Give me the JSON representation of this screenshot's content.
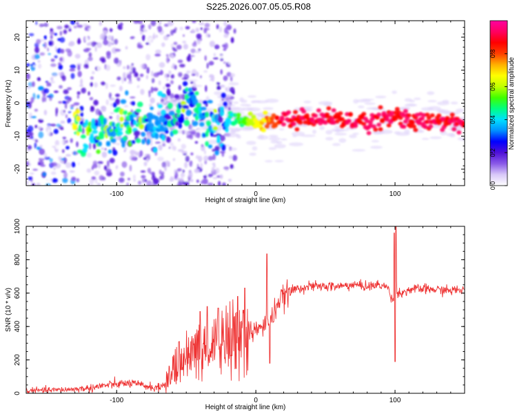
{
  "title": "S225.2026.007.05.05.R08",
  "chart_data": [
    {
      "type": "heatmap",
      "name": "spectrogram",
      "xlabel": "Height of straight line (km)",
      "ylabel": "Frequency (Hz)",
      "xlim": [
        -165,
        150
      ],
      "ylim": [
        -25,
        25
      ],
      "x_ticks": [
        -100,
        0,
        100
      ],
      "y_ticks": [
        20,
        10,
        0,
        -10,
        -20
      ],
      "colorbar": {
        "label": "Normalized spectral amplitude",
        "range": [
          0.0,
          1.0
        ],
        "ticks": [
          0.0,
          0.2,
          0.4,
          0.6,
          0.8
        ],
        "colors": [
          "#ffffff",
          "#d8c8f8",
          "#8a5ae8",
          "#5010d8",
          "#0000ff",
          "#0090ff",
          "#00e0ff",
          "#00ff80",
          "#40ff00",
          "#c0ff00",
          "#ffff00",
          "#ffb000",
          "#ff4000",
          "#ff0000",
          "#ff0060",
          "#ff00a0"
        ]
      },
      "ridge": {
        "description_points_x_km": [
          -125,
          -110,
          -95,
          -80,
          -70,
          -55,
          -45,
          -35,
          -25,
          -15,
          -5,
          5,
          15,
          30,
          50,
          70,
          85,
          95,
          100,
          110,
          130,
          150
        ],
        "frequency_hz": [
          -11,
          -8,
          -7,
          -5.5,
          -7,
          -3,
          0,
          -6,
          -5,
          -5,
          -5,
          -6,
          -5,
          -5,
          -5,
          -5.5,
          -6,
          -5,
          -4,
          -5,
          -5.5,
          -5.5
        ]
      }
    },
    {
      "type": "line",
      "name": "snr",
      "xlabel": "Height of straight line (km)",
      "ylabel": "SNR (10 * v/v)",
      "xlim": [
        -165,
        150
      ],
      "ylim": [
        0,
        1000
      ],
      "x_ticks": [
        -100,
        0,
        100
      ],
      "y_ticks": [
        0,
        200,
        400,
        600,
        800,
        1000
      ],
      "series": [
        {
          "name": "SNR",
          "color": "#ee3333",
          "x": [
            -165,
            -150,
            -140,
            -130,
            -120,
            -110,
            -100,
            -90,
            -80,
            -70,
            -65,
            -60,
            -55,
            -50,
            -45,
            -40,
            -35,
            -30,
            -25,
            -20,
            -15,
            -10,
            -7,
            -5,
            0,
            5,
            8,
            10,
            12,
            15,
            20,
            25,
            30,
            40,
            50,
            60,
            70,
            80,
            90,
            95,
            98,
            100,
            101,
            102,
            105,
            110,
            120,
            130,
            140,
            150
          ],
          "values": [
            15,
            18,
            20,
            25,
            30,
            45,
            55,
            60,
            45,
            30,
            60,
            110,
            160,
            200,
            220,
            250,
            270,
            270,
            290,
            310,
            330,
            340,
            330,
            360,
            380,
            390,
            440,
            430,
            460,
            530,
            580,
            610,
            630,
            640,
            640,
            640,
            650,
            640,
            650,
            630,
            560,
            580,
            670,
            600,
            600,
            620,
            625,
            620,
            615,
            620
          ]
        }
      ],
      "peaks": [
        {
          "x": -55,
          "value": 310
        },
        {
          "x": -40,
          "value": 490
        },
        {
          "x": -35,
          "value": 520
        },
        {
          "x": -27,
          "value": 510
        },
        {
          "x": -13,
          "value": 580
        },
        {
          "x": -8,
          "value": 630
        },
        {
          "x": 8,
          "value": 835
        },
        {
          "x": 10,
          "value": 700
        },
        {
          "x": 99.5,
          "value": 960
        },
        {
          "x": 100.5,
          "value": 1010
        }
      ],
      "troughs": [
        {
          "x": 10,
          "value": 180
        },
        {
          "x": 100,
          "value": 190
        }
      ]
    }
  ]
}
